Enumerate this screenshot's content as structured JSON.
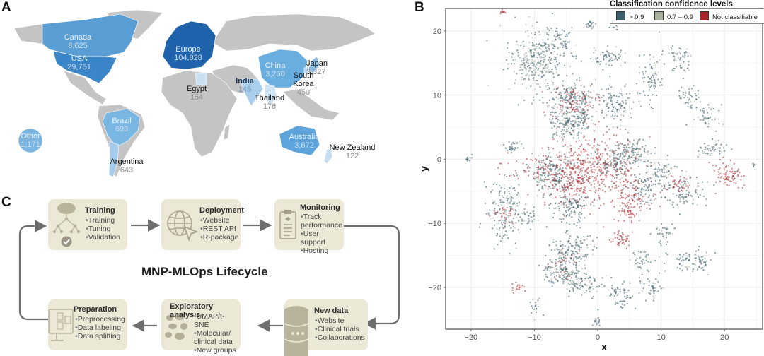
{
  "panels": {
    "a": "A",
    "b": "B",
    "c": "C"
  },
  "map": {
    "regions": [
      {
        "key": "canada",
        "name": "Canada",
        "value": "8,625",
        "color": "#5a9ed6",
        "style": "lt"
      },
      {
        "key": "usa",
        "name": "USA",
        "value": "29,751",
        "color": "#3b85c9",
        "style": "lt"
      },
      {
        "key": "europe",
        "name": "Europe",
        "value": "104,828",
        "color": "#1f63ad",
        "style": "lt"
      },
      {
        "key": "china",
        "name": "China",
        "value": "3,260",
        "color": "#6aaee0",
        "style": "lt"
      },
      {
        "key": "japan",
        "name": "Japan",
        "value": "3,327",
        "color": "#8ec1e6",
        "style": "dk"
      },
      {
        "key": "south-korea",
        "name": "South\nKorea",
        "value": "450",
        "color": "#b8d7ef",
        "style": "dk"
      },
      {
        "key": "india",
        "name": "India",
        "value": "145",
        "color": "#a9cfed",
        "style": "idk"
      },
      {
        "key": "egypt",
        "name": "Egypt",
        "value": "154",
        "color": "#c9e0f2",
        "style": "dk"
      },
      {
        "key": "thailand",
        "name": "Thailand",
        "value": "176",
        "color": "#cfe3f3",
        "style": "dk"
      },
      {
        "key": "brazil",
        "name": "Brazil",
        "value": "693",
        "color": "#7ab6e2",
        "style": "lt"
      },
      {
        "key": "argentina",
        "name": "Argentina",
        "value": "643",
        "color": "#a4cbec",
        "style": "dk"
      },
      {
        "key": "australia",
        "name": "Australia",
        "value": "3,672",
        "color": "#5ea4dc",
        "style": "lt"
      },
      {
        "key": "new-zealand",
        "name": "New Zealand",
        "value": "122",
        "color": "#c5def1",
        "style": "dk"
      },
      {
        "key": "other",
        "name": "Other",
        "value": "1,171",
        "color": "#7bb6e2",
        "style": "lt"
      }
    ],
    "land_color": "#c4c4c4"
  },
  "lifecycle": {
    "title": "MNP-MLOps Lifecycle",
    "stages": [
      {
        "key": "training",
        "title": "Training",
        "items": [
          "Training",
          "Tuning",
          "Validation"
        ]
      },
      {
        "key": "deployment",
        "title": "Deployment",
        "items": [
          "Website",
          "REST API",
          "R-package"
        ]
      },
      {
        "key": "monitoring",
        "title": "Monitoring",
        "items": [
          "Track performance",
          "User support",
          "Hosting"
        ]
      },
      {
        "key": "new-data",
        "title": "New data",
        "items": [
          "Website",
          "Clinical trials",
          "Collaborations"
        ]
      },
      {
        "key": "exploratory",
        "title": "Exploratory analysis",
        "items": [
          "UMAP/t-SNE",
          "Molecular/ clinical data",
          "New groups"
        ]
      },
      {
        "key": "preparation",
        "title": "Preparation",
        "items": [
          "Preprocessing",
          "Data labeling",
          "Data splitting"
        ]
      }
    ],
    "box_color": "#ece8d6",
    "arrow_color": "#6e6e6e"
  },
  "chart_data": {
    "type": "scatter",
    "title": "",
    "xlabel": "x",
    "ylabel": "y",
    "xlim": [
      -24,
      26
    ],
    "ylim": [
      -26.5,
      23.5
    ],
    "xticks": [
      -20,
      -10,
      0,
      10,
      20
    ],
    "yticks": [
      20,
      10,
      0,
      -10,
      -20
    ],
    "grid": true,
    "legend": {
      "title": "Classification confidence levels",
      "placement": "top-right",
      "entries": [
        {
          "label": "> 0.9",
          "color": "#3b5f6b"
        },
        {
          "label": "0.7 – 0.9",
          "color": "#a9b3a0"
        },
        {
          "label": "Not classifiable",
          "color": "#a8242a"
        }
      ]
    },
    "clusters": [
      {
        "series": 0,
        "cx": -9.5,
        "cy": 15.5,
        "sx": 2.3,
        "sy": 2.6,
        "n": 260
      },
      {
        "series": 1,
        "cx": -10,
        "cy": 15,
        "sx": 2.0,
        "sy": 2.2,
        "n": 90
      },
      {
        "series": 0,
        "cx": -6,
        "cy": 18.5,
        "sx": 1.1,
        "sy": 0.9,
        "n": 50
      },
      {
        "series": 0,
        "cx": -4.5,
        "cy": 9.5,
        "sx": 2.0,
        "sy": 1.2,
        "n": 170
      },
      {
        "series": 2,
        "cx": -4,
        "cy": 9,
        "sx": 1.8,
        "sy": 1.4,
        "n": 90
      },
      {
        "series": 0,
        "cx": -4.5,
        "cy": 5.5,
        "sx": 1.7,
        "sy": 1.1,
        "n": 150
      },
      {
        "series": 0,
        "cx": 1.5,
        "cy": 15.8,
        "sx": 1.3,
        "sy": 0.7,
        "n": 70
      },
      {
        "series": 0,
        "cx": 2.8,
        "cy": 8.5,
        "sx": 1.5,
        "sy": 1.6,
        "n": 110
      },
      {
        "series": 0,
        "cx": -2.2,
        "cy": 6.8,
        "sx": 0.6,
        "sy": 0.6,
        "n": 30
      },
      {
        "series": 0,
        "cx": -1,
        "cy": 21,
        "sx": 0.6,
        "sy": 0.4,
        "n": 20
      },
      {
        "series": 0,
        "cx": 2.6,
        "cy": 20.5,
        "sx": 0.3,
        "sy": 0.3,
        "n": 8
      },
      {
        "series": 0,
        "cx": 8.5,
        "cy": 13,
        "sx": 0.9,
        "sy": 2.0,
        "n": 80
      },
      {
        "series": 0,
        "cx": 13,
        "cy": 15.5,
        "sx": 0.9,
        "sy": 1.1,
        "n": 50
      },
      {
        "series": 0,
        "cx": 14.5,
        "cy": 9.5,
        "sx": 0.9,
        "sy": 0.9,
        "n": 40
      },
      {
        "series": 0,
        "cx": 17,
        "cy": 6.5,
        "sx": 1.0,
        "sy": 1.0,
        "n": 45
      },
      {
        "series": 0,
        "cx": 18,
        "cy": 1.5,
        "sx": 1.0,
        "sy": 0.8,
        "n": 40
      },
      {
        "series": 0,
        "cx": -20.5,
        "cy": 0,
        "sx": 0.3,
        "sy": 0.4,
        "n": 12
      },
      {
        "series": 0,
        "cx": -13.5,
        "cy": 2,
        "sx": 0.8,
        "sy": 0.6,
        "n": 30
      },
      {
        "series": 0,
        "cx": -7,
        "cy": -2.5,
        "sx": 1.6,
        "sy": 1.6,
        "n": 180
      },
      {
        "series": 2,
        "cx": -3,
        "cy": -3,
        "sx": 3.0,
        "sy": 2.2,
        "n": 330
      },
      {
        "series": 0,
        "cx": -4,
        "cy": -7.5,
        "sx": 1.6,
        "sy": 1.2,
        "n": 130
      },
      {
        "series": 2,
        "cx": 0,
        "cy": 0,
        "sx": 3.5,
        "sy": 2.5,
        "n": 160
      },
      {
        "series": 0,
        "cx": 2.5,
        "cy": -0.5,
        "sx": 1.2,
        "sy": 1.6,
        "n": 90
      },
      {
        "series": 0,
        "cx": 5.5,
        "cy": 1,
        "sx": 1.5,
        "sy": 1.2,
        "n": 110
      },
      {
        "series": 2,
        "cx": 5,
        "cy": -5,
        "sx": 1.8,
        "sy": 2.0,
        "n": 120
      },
      {
        "series": 0,
        "cx": 7.5,
        "cy": -4.5,
        "sx": 1.2,
        "sy": 1.3,
        "n": 80
      },
      {
        "series": 0,
        "cx": 13.5,
        "cy": -5,
        "sx": 1.6,
        "sy": 1.3,
        "n": 90
      },
      {
        "series": 2,
        "cx": 13,
        "cy": -4,
        "sx": 1.3,
        "sy": 1.0,
        "n": 40
      },
      {
        "series": 2,
        "cx": 20.5,
        "cy": -2.5,
        "sx": 1.0,
        "sy": 1.0,
        "n": 80
      },
      {
        "series": 0,
        "cx": 10,
        "cy": -2,
        "sx": 1.0,
        "sy": 1.1,
        "n": 50
      },
      {
        "series": 0,
        "cx": -14.5,
        "cy": -8,
        "sx": 1.5,
        "sy": 2.8,
        "n": 160
      },
      {
        "series": 2,
        "cx": -15,
        "cy": -8.5,
        "sx": 1.0,
        "sy": 1.0,
        "n": 30
      },
      {
        "series": 0,
        "cx": -11,
        "cy": -9,
        "sx": 0.7,
        "sy": 0.8,
        "n": 30
      },
      {
        "series": 0,
        "cx": -4,
        "cy": -14,
        "sx": 1.8,
        "sy": 1.5,
        "n": 140
      },
      {
        "series": 0,
        "cx": -5.5,
        "cy": -17.5,
        "sx": 1.5,
        "sy": 1.2,
        "n": 110
      },
      {
        "series": 0,
        "cx": -2.5,
        "cy": -19.5,
        "sx": 1.5,
        "sy": 1.0,
        "n": 90
      },
      {
        "series": 2,
        "cx": -5.5,
        "cy": -16.5,
        "sx": 1.3,
        "sy": 1.0,
        "n": 30
      },
      {
        "series": 0,
        "cx": 3.5,
        "cy": -21.5,
        "sx": 1.1,
        "sy": 1.0,
        "n": 60
      },
      {
        "series": 2,
        "cx": 3.5,
        "cy": -12.5,
        "sx": 0.8,
        "sy": 0.7,
        "n": 45
      },
      {
        "series": 2,
        "cx": 5,
        "cy": -8.5,
        "sx": 0.8,
        "sy": 0.8,
        "n": 35
      },
      {
        "series": 0,
        "cx": 7,
        "cy": -15.5,
        "sx": 0.8,
        "sy": 0.7,
        "n": 35
      },
      {
        "series": 0,
        "cx": 10.5,
        "cy": -11.5,
        "sx": 0.9,
        "sy": 0.9,
        "n": 35
      },
      {
        "series": 0,
        "cx": 14,
        "cy": -16,
        "sx": 1.8,
        "sy": 1.0,
        "n": 60
      },
      {
        "series": 0,
        "cx": 16.5,
        "cy": -16,
        "sx": 0.6,
        "sy": 0.6,
        "n": 25
      },
      {
        "series": 0,
        "cx": 8.5,
        "cy": -20,
        "sx": 1.0,
        "sy": 0.8,
        "n": 40
      },
      {
        "series": 0,
        "cx": -10,
        "cy": -23,
        "sx": 0.5,
        "sy": 0.6,
        "n": 20
      },
      {
        "series": 2,
        "cx": -12.5,
        "cy": -20,
        "sx": 0.6,
        "sy": 0.5,
        "n": 18
      },
      {
        "series": 0,
        "cx": 0,
        "cy": -25,
        "sx": 0.5,
        "sy": 0.6,
        "n": 15
      },
      {
        "series": 2,
        "cx": -15,
        "cy": 23,
        "sx": 0.3,
        "sy": 0.2,
        "n": 10
      },
      {
        "series": 2,
        "cx": -9,
        "cy": -1,
        "sx": 4.5,
        "sy": 1.2,
        "n": 70
      },
      {
        "series": 0,
        "cx": 24.5,
        "cy": -1,
        "sx": 0.2,
        "sy": 0.2,
        "n": 6
      }
    ]
  }
}
